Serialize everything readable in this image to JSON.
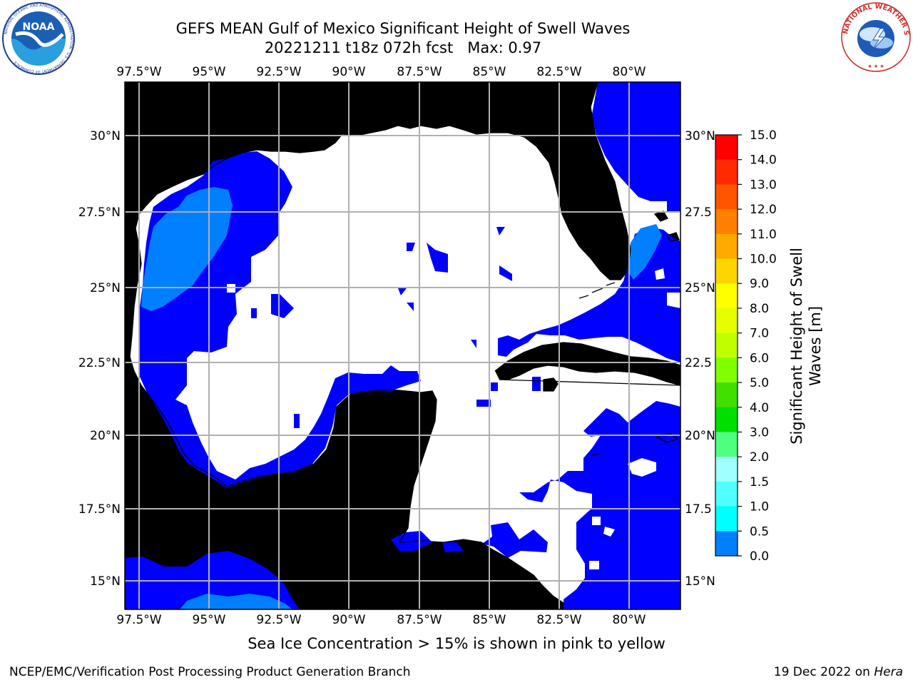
{
  "title": {
    "line1": "GEFS MEAN Gulf of Mexico Significant Height of Swell Waves",
    "line2": "20221211 t18z 072h fcst   Max: 0.97"
  },
  "logos": {
    "left": {
      "name": "NOAA",
      "ring_text": "NATIONAL OCEANIC AND ATMOSPHERIC ADMINISTRATION · U.S. DEPARTMENT OF COMMERCE"
    },
    "right": {
      "name": "NATIONAL WEATHER SERVICE"
    }
  },
  "map": {
    "lon_labels": [
      "97.5°W",
      "95°W",
      "92.5°W",
      "90°W",
      "87.5°W",
      "85°W",
      "82.5°W",
      "80°W"
    ],
    "lat_labels_left": [
      "30°N",
      "27.5°N",
      "25°N",
      "22.5°N",
      "20°N",
      "17.5°N",
      "15°N"
    ],
    "lat_labels_right": [
      "30°N",
      "27.5",
      "25°N",
      "22.5",
      "20°N",
      "17.5",
      "15°N"
    ],
    "colors": {
      "land": "#eeeedd",
      "ocean_calm": "#ffffff",
      "band_0_0_5": "#0000ff",
      "band_0_5_1_0": "#0080ff",
      "grid": "#b0b0b0"
    }
  },
  "colorbar": {
    "label_line1": "Significant Height of Swell",
    "label_line2": "Waves [m]",
    "ticks": [
      "15.0",
      "14.0",
      "13.0",
      "12.0",
      "11.0",
      "10.0",
      "9.0",
      "8.0",
      "7.0",
      "6.0",
      "5.0",
      "4.0",
      "3.0",
      "2.0",
      "1.5",
      "1.0",
      "0.5",
      "0.0"
    ],
    "colors_top_to_bottom": [
      "#ff0000",
      "#ff2a00",
      "#ff5500",
      "#ff8000",
      "#ffaa00",
      "#ffd500",
      "#ffff00",
      "#e5ff00",
      "#c0ff00",
      "#80ff00",
      "#40e000",
      "#00e000",
      "#50ff80",
      "#a0ffff",
      "#50ffff",
      "#00ffff",
      "#0080ff",
      "#0000ff"
    ]
  },
  "footer": {
    "caption": "Sea Ice Concentration > 15% is shown in pink to yellow",
    "left": "NCEP/EMC/Verification Post Processing Product Generation Branch",
    "right_date": "19 Dec 2022 on ",
    "right_host": "Hera"
  }
}
